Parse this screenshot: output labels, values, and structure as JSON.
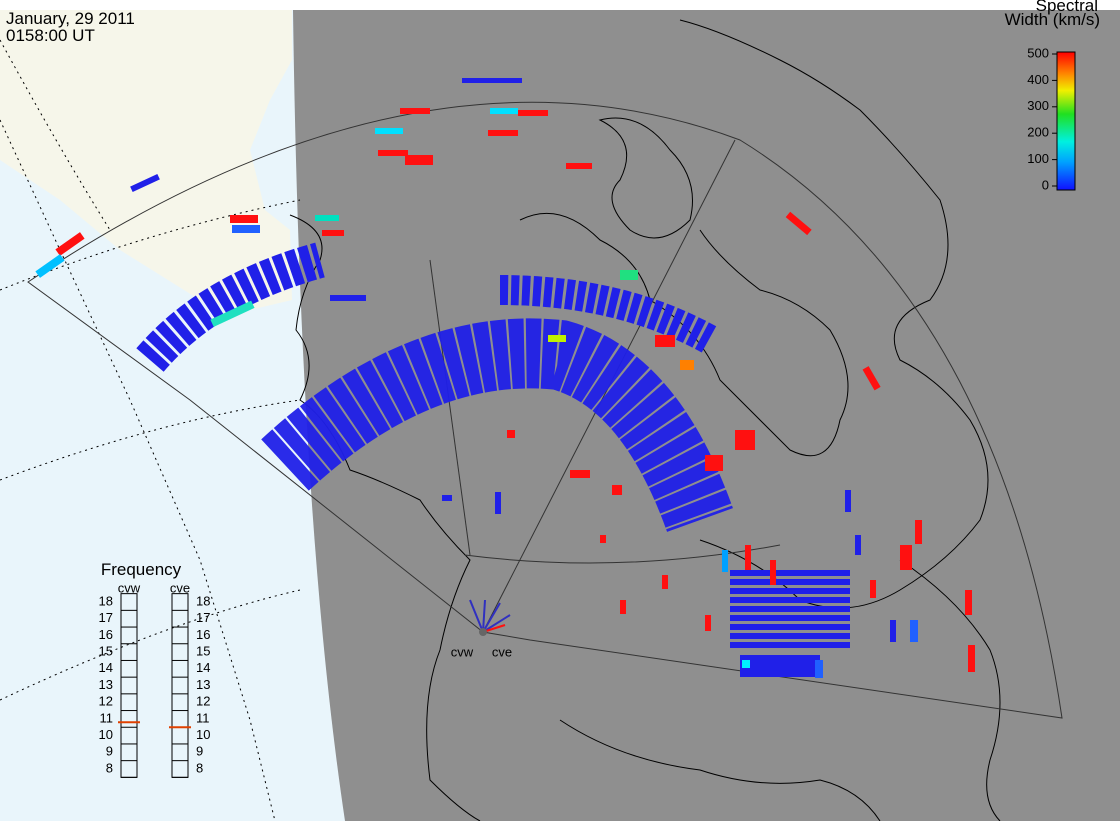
{
  "header": {
    "date": "January, 29 2011",
    "time": "0158:00 UT"
  },
  "colorbar": {
    "title": [
      "Spectral",
      "Width (km/s)"
    ],
    "lim": [
      0,
      500
    ],
    "ticks": [
      0,
      100,
      200,
      300,
      400,
      500
    ]
  },
  "frequency": {
    "title": "Frequency",
    "lim": [
      8,
      18
    ],
    "ticks": [
      8,
      9,
      10,
      11,
      12,
      13,
      14,
      15,
      16,
      17,
      18
    ],
    "radars": [
      {
        "name": "cvw",
        "value": 10.8
      },
      {
        "name": "cve",
        "value": 10.5
      }
    ]
  },
  "sites": [
    "cvw",
    "cve"
  ]
}
